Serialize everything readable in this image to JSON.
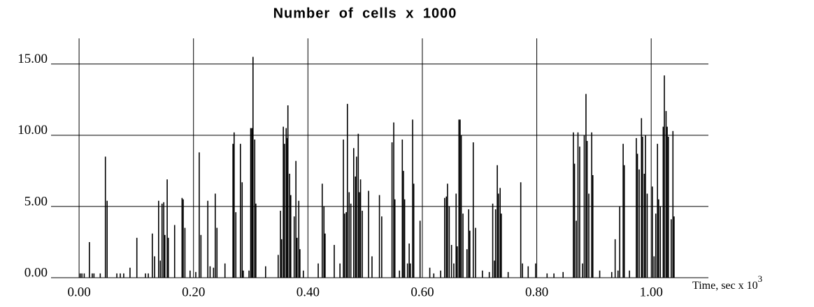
{
  "chart_data": {
    "type": "bar",
    "title": "Number of cells x 1000",
    "xlabel": "Time, sec x 10",
    "xlabel_exponent": "3",
    "color": "#000000",
    "grid": true,
    "xlim": [
      -0.049,
      1.1
    ],
    "ylim": [
      0,
      16.8
    ],
    "xticks": [
      {
        "value": 0,
        "label": "0.00"
      },
      {
        "value": 0.2,
        "label": "0.20"
      },
      {
        "value": 0.4,
        "label": "0.40"
      },
      {
        "value": 0.6,
        "label": "0.60"
      },
      {
        "value": 0.8,
        "label": "0.80"
      },
      {
        "value": 1.0,
        "label": "1.00"
      }
    ],
    "yticks": [
      {
        "value": 0,
        "label": "0.00"
      },
      {
        "value": 5,
        "label": "5.00"
      },
      {
        "value": 10,
        "label": "10.00"
      },
      {
        "value": 15,
        "label": "15.00"
      }
    ],
    "x": [
      0.002,
      0.005,
      0.009,
      0.018,
      0.023,
      0.026,
      0.037,
      0.046,
      0.049,
      0.066,
      0.072,
      0.078,
      0.089,
      0.101,
      0.116,
      0.121,
      0.128,
      0.132,
      0.139,
      0.142,
      0.145,
      0.148,
      0.15,
      0.154,
      0.156,
      0.167,
      0.18,
      0.182,
      0.185,
      0.194,
      0.204,
      0.21,
      0.213,
      0.225,
      0.229,
      0.235,
      0.238,
      0.241,
      0.255,
      0.269,
      0.271,
      0.274,
      0.282,
      0.285,
      0.287,
      0.297,
      0.3,
      0.302,
      0.304,
      0.307,
      0.309,
      0.326,
      0.348,
      0.352,
      0.354,
      0.357,
      0.359,
      0.362,
      0.364,
      0.365,
      0.368,
      0.37,
      0.376,
      0.379,
      0.381,
      0.384,
      0.386,
      0.392,
      0.418,
      0.425,
      0.428,
      0.43,
      0.446,
      0.456,
      0.462,
      0.464,
      0.467,
      0.469,
      0.472,
      0.475,
      0.48,
      0.483,
      0.485,
      0.488,
      0.49,
      0.492,
      0.495,
      0.506,
      0.512,
      0.525,
      0.529,
      0.547,
      0.55,
      0.552,
      0.56,
      0.565,
      0.567,
      0.569,
      0.574,
      0.577,
      0.579,
      0.583,
      0.585,
      0.596,
      0.613,
      0.62,
      0.632,
      0.639,
      0.642,
      0.644,
      0.647,
      0.651,
      0.655,
      0.659,
      0.661,
      0.664,
      0.666,
      0.668,
      0.671,
      0.678,
      0.681,
      0.683,
      0.689,
      0.693,
      0.705,
      0.717,
      0.723,
      0.726,
      0.728,
      0.731,
      0.733,
      0.736,
      0.738,
      0.75,
      0.772,
      0.775,
      0.785,
      0.798,
      0.818,
      0.83,
      0.846,
      0.864,
      0.866,
      0.869,
      0.872,
      0.875,
      0.88,
      0.883,
      0.886,
      0.888,
      0.891,
      0.896,
      0.898,
      0.91,
      0.931,
      0.937,
      0.942,
      0.945,
      0.951,
      0.953,
      0.962,
      0.974,
      0.976,
      0.979,
      0.983,
      0.985,
      0.988,
      0.99,
      0.993,
      1.002,
      1.005,
      1.008,
      1.011,
      1.013,
      1.016,
      1.021,
      1.023,
      1.026,
      1.028,
      1.03,
      1.035,
      1.038,
      1.04
    ],
    "values": [
      0.3,
      0.3,
      0.3,
      2.5,
      0.3,
      0.3,
      0.3,
      8.5,
      5.4,
      0.3,
      0.3,
      0.3,
      0.7,
      2.8,
      0.3,
      0.3,
      3.1,
      1.5,
      5.4,
      1.2,
      5.2,
      5.3,
      3.0,
      6.9,
      2.8,
      3.7,
      5.6,
      5.5,
      3.5,
      0.5,
      0.4,
      8.8,
      3.0,
      5.4,
      0.8,
      0.7,
      5.9,
      3.5,
      1.0,
      9.4,
      10.2,
      4.6,
      9.4,
      6.7,
      0.5,
      0.5,
      10.5,
      10.5,
      15.5,
      9.7,
      5.2,
      0.8,
      1.6,
      4.7,
      2.7,
      10.6,
      9.4,
      10.5,
      9.8,
      12.1,
      7.3,
      5.8,
      4.3,
      8.2,
      2.8,
      5.4,
      2.0,
      0.5,
      1.0,
      6.6,
      5.0,
      3.1,
      2.3,
      1.0,
      9.7,
      4.5,
      4.6,
      12.2,
      6.0,
      5.2,
      9.1,
      7.1,
      8.5,
      10.1,
      6.0,
      6.9,
      4.7,
      6.1,
      1.5,
      5.8,
      4.3,
      9.5,
      10.9,
      5.5,
      0.5,
      9.7,
      7.5,
      5.5,
      1.0,
      2.4,
      1.0,
      11.1,
      6.6,
      4.0,
      0.7,
      0.3,
      0.5,
      5.6,
      5.7,
      6.6,
      5.0,
      2.3,
      1.0,
      5.9,
      2.2,
      11.1,
      11.1,
      10.0,
      4.5,
      2.0,
      4.8,
      3.3,
      9.5,
      3.5,
      0.5,
      0.4,
      5.2,
      1.2,
      4.8,
      7.9,
      5.9,
      6.3,
      4.5,
      0.4,
      6.7,
      1.0,
      0.8,
      1.0,
      0.3,
      0.3,
      0.4,
      10.2,
      8.0,
      4.0,
      10.2,
      9.2,
      1.0,
      10.0,
      12.9,
      9.6,
      5.9,
      10.2,
      7.2,
      0.5,
      0.4,
      2.7,
      0.5,
      5.0,
      9.4,
      7.9,
      0.5,
      9.8,
      8.7,
      7.6,
      11.2,
      9.9,
      7.3,
      10.0,
      5.9,
      6.4,
      1.5,
      4.5,
      9.4,
      5.5,
      5.0,
      10.6,
      14.2,
      11.7,
      10.6,
      9.9,
      4.1,
      10.3,
      4.3
    ]
  }
}
